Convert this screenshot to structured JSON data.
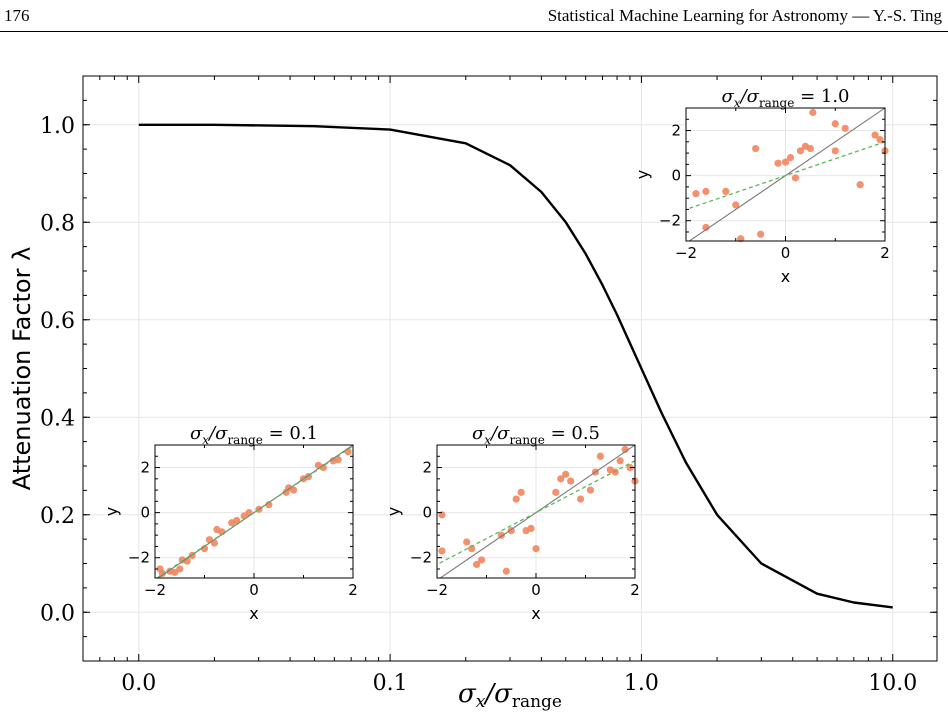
{
  "page": {
    "page_number": "176",
    "running_title": "Statistical Machine Learning for Astronomy — Y.-S. Ting"
  },
  "chart_data": [
    {
      "type": "line",
      "x_scale": "log",
      "xlabel": "σx/σrange",
      "ylabel": "Attenuation Factor λ",
      "xlim": [
        0.006,
        15
      ],
      "ylim": [
        -0.1,
        1.1
      ],
      "xticks": [
        0.01,
        0.1,
        1.0,
        10.0
      ],
      "xtick_labels": [
        "0.0",
        "0.1",
        "1.0",
        "10.0"
      ],
      "yticks": [
        0.0,
        0.2,
        0.4,
        0.6,
        0.8,
        1.0
      ],
      "ytick_labels": [
        "0.0",
        "0.2",
        "0.4",
        "0.6",
        "0.8",
        "1.0"
      ],
      "grid": true,
      "series": [
        {
          "color": "#000000",
          "x": [
            0.01,
            0.02,
            0.05,
            0.1,
            0.2,
            0.3,
            0.4,
            0.5,
            0.6,
            0.7,
            0.8,
            1.0,
            1.2,
            1.5,
            2.0,
            3.0,
            5.0,
            7.0,
            10.0
          ],
          "y": [
            1.0,
            1.0,
            0.997,
            0.99,
            0.962,
            0.917,
            0.862,
            0.8,
            0.735,
            0.671,
            0.61,
            0.5,
            0.41,
            0.308,
            0.2,
            0.1,
            0.038,
            0.02,
            0.01
          ]
        }
      ]
    },
    {
      "type": "scatter",
      "title": "σx/σrange = 0.1",
      "xlabel": "x",
      "ylabel": "y",
      "xlim": [
        -2,
        2
      ],
      "ylim": [
        -2.9,
        3.0
      ],
      "xticks": [
        -2,
        0,
        2
      ],
      "xtick_labels": [
        "−2",
        "0",
        "2"
      ],
      "yticks": [
        -2,
        0,
        2
      ],
      "ytick_labels": [
        "−2",
        "0",
        "2"
      ],
      "true_line_slope": 1.5,
      "fit_line_slope": 1.48,
      "points": [
        [
          -1.9,
          -2.5
        ],
        [
          -1.85,
          -2.7
        ],
        [
          -1.7,
          -2.6
        ],
        [
          -1.6,
          -2.65
        ],
        [
          -1.5,
          -2.5
        ],
        [
          -1.45,
          -2.1
        ],
        [
          -1.35,
          -2.15
        ],
        [
          -1.25,
          -1.9
        ],
        [
          -1.0,
          -1.6
        ],
        [
          -0.9,
          -1.2
        ],
        [
          -0.8,
          -1.35
        ],
        [
          -0.75,
          -0.75
        ],
        [
          -0.65,
          -0.85
        ],
        [
          -0.45,
          -0.45
        ],
        [
          -0.35,
          -0.35
        ],
        [
          -0.2,
          -0.15
        ],
        [
          -0.1,
          0.0
        ],
        [
          0.1,
          0.15
        ],
        [
          0.3,
          0.35
        ],
        [
          0.65,
          0.9
        ],
        [
          0.7,
          1.1
        ],
        [
          0.8,
          1.0
        ],
        [
          1.0,
          1.5
        ],
        [
          1.1,
          1.6
        ],
        [
          1.3,
          2.1
        ],
        [
          1.4,
          2.0
        ],
        [
          1.6,
          2.3
        ],
        [
          1.7,
          2.35
        ],
        [
          1.9,
          2.7
        ]
      ]
    },
    {
      "type": "scatter",
      "title": "σx/σrange = 0.5",
      "xlabel": "x",
      "ylabel": "y",
      "xlim": [
        -2,
        2
      ],
      "ylim": [
        -2.9,
        3.0
      ],
      "xticks": [
        -2,
        0,
        2
      ],
      "xtick_labels": [
        "−2",
        "0",
        "2"
      ],
      "yticks": [
        -2,
        0,
        2
      ],
      "ytick_labels": [
        "−2",
        "0",
        "2"
      ],
      "true_line_slope": 1.5,
      "fit_line_slope": 1.15,
      "points": [
        [
          -1.9,
          -1.7
        ],
        [
          -1.9,
          -0.1
        ],
        [
          -1.4,
          -1.3
        ],
        [
          -1.2,
          -2.3
        ],
        [
          -1.1,
          -2.1
        ],
        [
          -0.7,
          -1.0
        ],
        [
          -0.6,
          -2.6
        ],
        [
          -0.5,
          -0.8
        ],
        [
          -0.4,
          0.6
        ],
        [
          -0.3,
          0.9
        ],
        [
          -0.2,
          -0.8
        ],
        [
          -0.1,
          -0.7
        ],
        [
          0.0,
          -1.6
        ],
        [
          0.4,
          0.9
        ],
        [
          0.5,
          1.5
        ],
        [
          0.6,
          1.7
        ],
        [
          0.7,
          1.4
        ],
        [
          0.9,
          0.6
        ],
        [
          1.1,
          1.0
        ],
        [
          1.2,
          1.8
        ],
        [
          1.3,
          2.5
        ],
        [
          1.5,
          1.9
        ],
        [
          1.6,
          1.8
        ],
        [
          1.7,
          2.3
        ],
        [
          1.8,
          2.8
        ],
        [
          1.9,
          2.0
        ],
        [
          2.0,
          1.4
        ],
        [
          -1.3,
          -1.6
        ]
      ]
    },
    {
      "type": "scatter",
      "title": "σx/σrange = 1.0",
      "xlabel": "x",
      "ylabel": "y",
      "xlim": [
        -2,
        2
      ],
      "ylim": [
        -2.9,
        3.0
      ],
      "xticks": [
        -2,
        0,
        2
      ],
      "xtick_labels": [
        "−2",
        "0",
        "2"
      ],
      "yticks": [
        -2,
        0,
        2
      ],
      "ytick_labels": [
        "−2",
        "0",
        "2"
      ],
      "true_line_slope": 1.5,
      "fit_line_slope": 0.75,
      "points": [
        [
          -1.8,
          -0.8
        ],
        [
          -1.6,
          -0.7
        ],
        [
          -1.6,
          -2.3
        ],
        [
          -1.2,
          -0.7
        ],
        [
          -1.0,
          -1.3
        ],
        [
          -0.9,
          -2.8
        ],
        [
          -0.6,
          1.2
        ],
        [
          -0.5,
          -2.6
        ],
        [
          0.0,
          0.6
        ],
        [
          0.1,
          0.8
        ],
        [
          0.2,
          -0.1
        ],
        [
          0.3,
          1.1
        ],
        [
          0.4,
          1.3
        ],
        [
          0.5,
          1.2
        ],
        [
          1.0,
          2.3
        ],
        [
          1.0,
          1.1
        ],
        [
          1.2,
          2.1
        ],
        [
          1.5,
          -0.4
        ],
        [
          1.8,
          1.8
        ],
        [
          1.9,
          1.6
        ],
        [
          2.0,
          1.1
        ],
        [
          0.55,
          2.8
        ],
        [
          -0.15,
          0.55
        ]
      ]
    }
  ],
  "colors": {
    "points": "#f4845f",
    "true_line": "#7a7a7a",
    "fit_line": "#5cb85c",
    "main_curve": "#000000",
    "grid": "#e6e6e6"
  }
}
